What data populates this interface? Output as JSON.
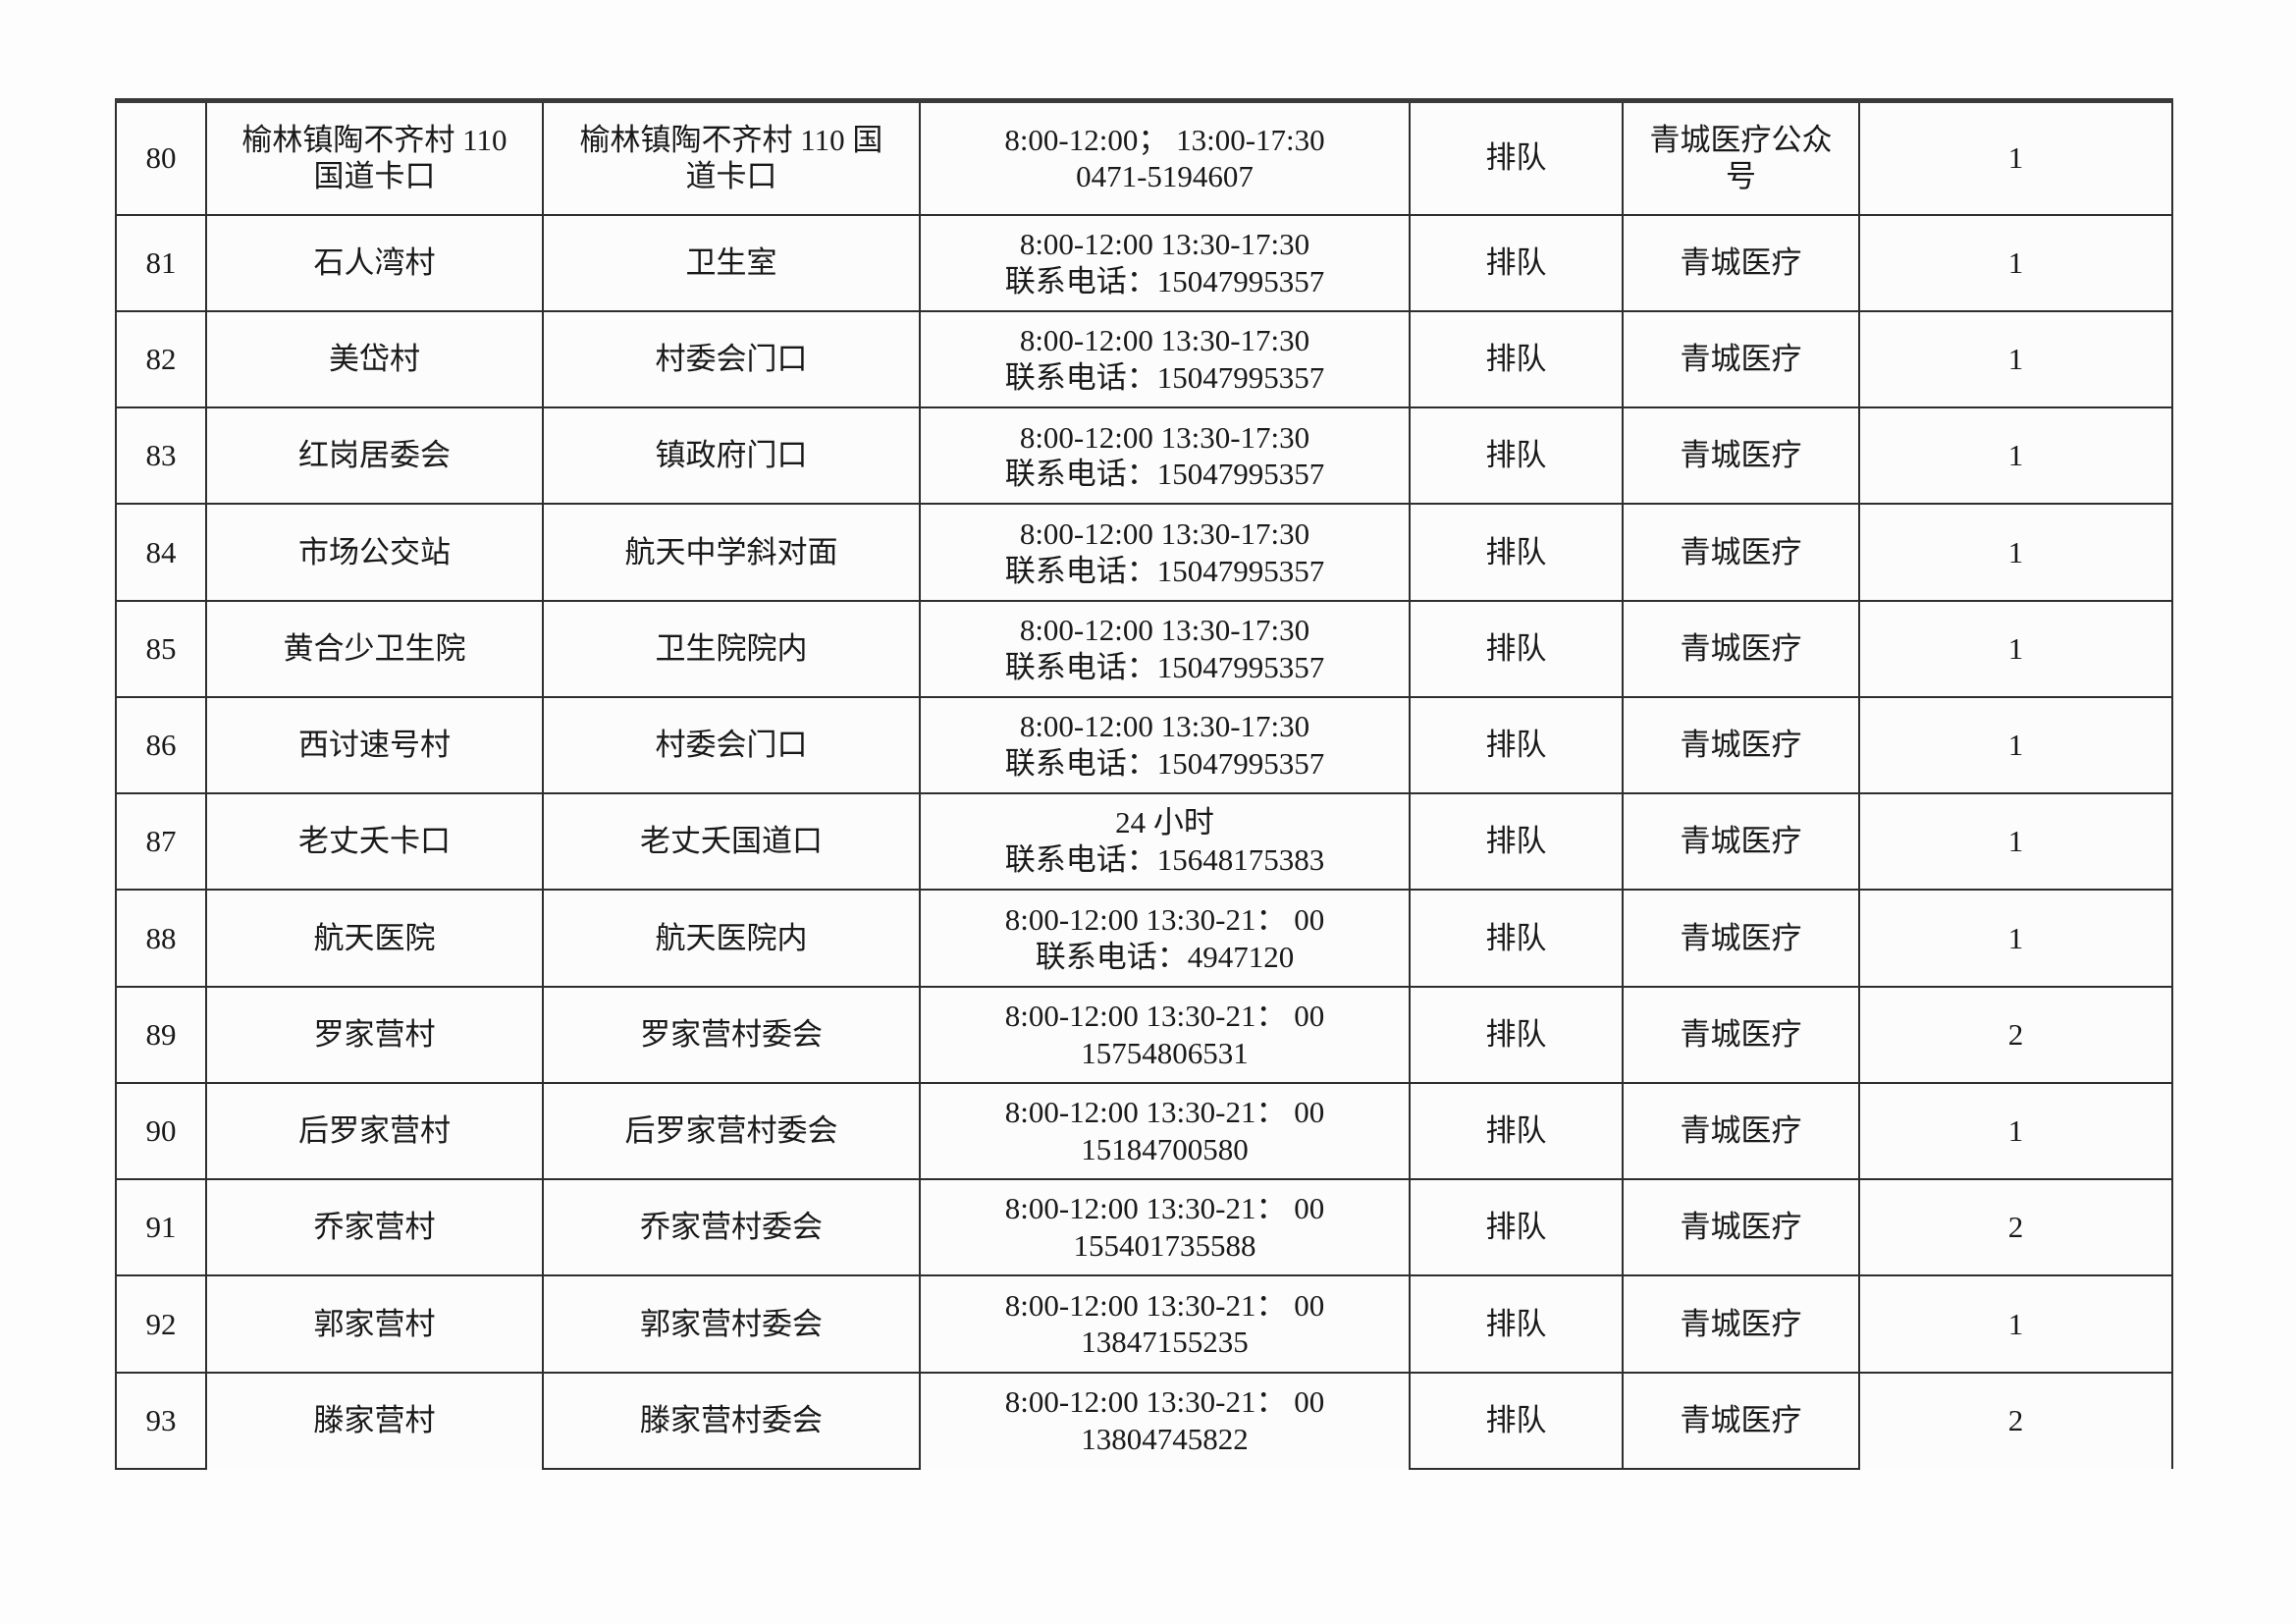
{
  "page": {
    "background_color": "#fdfdfd",
    "text_color": "#191919",
    "grid_color": "#2e2e2e",
    "top_rule_color": "#3a3a3a"
  },
  "table": {
    "status_label_common": "排队",
    "provider_label_common": "青城医疗",
    "rows": [
      {
        "no": "80",
        "name": "榆林镇陶不齐村 110\n国道卡口",
        "location": "榆林镇陶不齐村 110 国\n道卡口",
        "hours": "8:00-12:00； 13:00-17:30\n0471-5194607",
        "status": "排队",
        "provider": "青城医疗公众\n号",
        "count": "1"
      },
      {
        "no": "81",
        "name": "石人湾村",
        "location": "卫生室",
        "hours": "8:00-12:00 13:30-17:30\n联系电话：15047995357",
        "status": "排队",
        "provider": "青城医疗",
        "count": "1"
      },
      {
        "no": "82",
        "name": "美岱村",
        "location": "村委会门口",
        "hours": "8:00-12:00 13:30-17:30\n联系电话：15047995357",
        "status": "排队",
        "provider": "青城医疗",
        "count": "1"
      },
      {
        "no": "83",
        "name": "红岗居委会",
        "location": "镇政府门口",
        "hours": "8:00-12:00 13:30-17:30\n联系电话：15047995357",
        "status": "排队",
        "provider": "青城医疗",
        "count": "1"
      },
      {
        "no": "84",
        "name": "市场公交站",
        "location": "航天中学斜对面",
        "hours": "8:00-12:00 13:30-17:30\n联系电话：15047995357",
        "status": "排队",
        "provider": "青城医疗",
        "count": "1"
      },
      {
        "no": "85",
        "name": "黄合少卫生院",
        "location": "卫生院院内",
        "hours": "8:00-12:00 13:30-17:30\n联系电话：15047995357",
        "status": "排队",
        "provider": "青城医疗",
        "count": "1"
      },
      {
        "no": "86",
        "name": "西讨速号村",
        "location": "村委会门口",
        "hours": "8:00-12:00 13:30-17:30\n联系电话：15047995357",
        "status": "排队",
        "provider": "青城医疗",
        "count": "1"
      },
      {
        "no": "87",
        "name": "老丈夭卡口",
        "location": "老丈夭国道口",
        "hours": "24 小时\n联系电话：15648175383",
        "status": "排队",
        "provider": "青城医疗",
        "count": "1"
      },
      {
        "no": "88",
        "name": "航天医院",
        "location": "航天医院内",
        "hours": "8:00-12:00 13:30-21： 00\n联系电话：4947120",
        "status": "排队",
        "provider": "青城医疗",
        "count": "1"
      },
      {
        "no": "89",
        "name": "罗家营村",
        "location": "罗家营村委会",
        "hours": "8:00-12:00 13:30-21： 00\n15754806531",
        "status": "排队",
        "provider": "青城医疗",
        "count": "2"
      },
      {
        "no": "90",
        "name": "后罗家营村",
        "location": "后罗家营村委会",
        "hours": "8:00-12:00 13:30-21： 00\n15184700580",
        "status": "排队",
        "provider": "青城医疗",
        "count": "1"
      },
      {
        "no": "91",
        "name": "乔家营村",
        "location": "乔家营村委会",
        "hours": "8:00-12:00 13:30-21： 00\n155401735588",
        "status": "排队",
        "provider": "青城医疗",
        "count": "2"
      },
      {
        "no": "92",
        "name": "郭家营村",
        "location": "郭家营村委会",
        "hours": "8:00-12:00 13:30-21： 00\n13847155235",
        "status": "排队",
        "provider": "青城医疗",
        "count": "1"
      },
      {
        "no": "93",
        "name": "滕家营村",
        "location": "滕家营村委会",
        "hours": "8:00-12:00 13:30-21： 00\n13804745822",
        "status": "排队",
        "provider": "青城医疗",
        "count": "2"
      }
    ]
  }
}
